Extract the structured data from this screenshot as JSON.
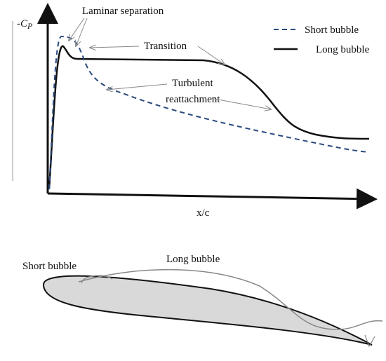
{
  "chart": {
    "y_axis_label": {
      "main": "-C",
      "sub": "P"
    },
    "x_axis_label": "x/c",
    "legend": [
      "Short bubble",
      "Long bubble"
    ],
    "annotations": {
      "laminar_separation": "Laminar separation",
      "transition": "Transition",
      "turbulent_reattachment": [
        "Turbulent",
        "reattachment"
      ]
    }
  },
  "airfoil": {
    "labels": [
      "Short bubble",
      "Long bubble"
    ]
  }
}
